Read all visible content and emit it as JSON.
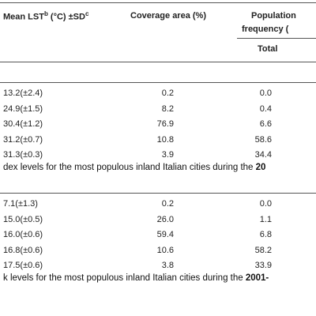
{
  "table": {
    "header": {
      "col1": {
        "text": "Mean LST",
        "sup1": "b",
        "text2": " (°C) ±SD",
        "sup2": "c"
      },
      "col2": "Coverage area (%)",
      "col3_line1": "Population",
      "col3_line2": "frequency (",
      "sub": "Total"
    },
    "groups": [
      {
        "rows": [
          [
            "13.2(±2.4)",
            "0.2",
            "0.0"
          ],
          [
            "24.9(±1.5)",
            "8.2",
            "0.4"
          ],
          [
            "30.4(±1.2)",
            "76.9",
            "6.6"
          ],
          [
            "31.2(±0.7)",
            "10.8",
            "58.6"
          ],
          [
            "31.3(±0.3)",
            "3.9",
            "34.4"
          ]
        ],
        "caption": "dex levels for the most populous inland Italian cities during the ",
        "caption_bold": "20"
      },
      {
        "rows": [
          [
            "7.1(±1.3)",
            "0.2",
            "0.0"
          ],
          [
            "15.0(±0.5)",
            "26.0",
            "1.1"
          ],
          [
            "16.0(±0.6)",
            "59.4",
            "6.8"
          ],
          [
            "16.8(±0.6)",
            "10.6",
            "58.2"
          ],
          [
            "17.5(±0.6)",
            "3.8",
            "33.9"
          ]
        ],
        "caption": "k levels for the most populous inland Italian cities during the ",
        "caption_bold": "2001-"
      }
    ]
  }
}
